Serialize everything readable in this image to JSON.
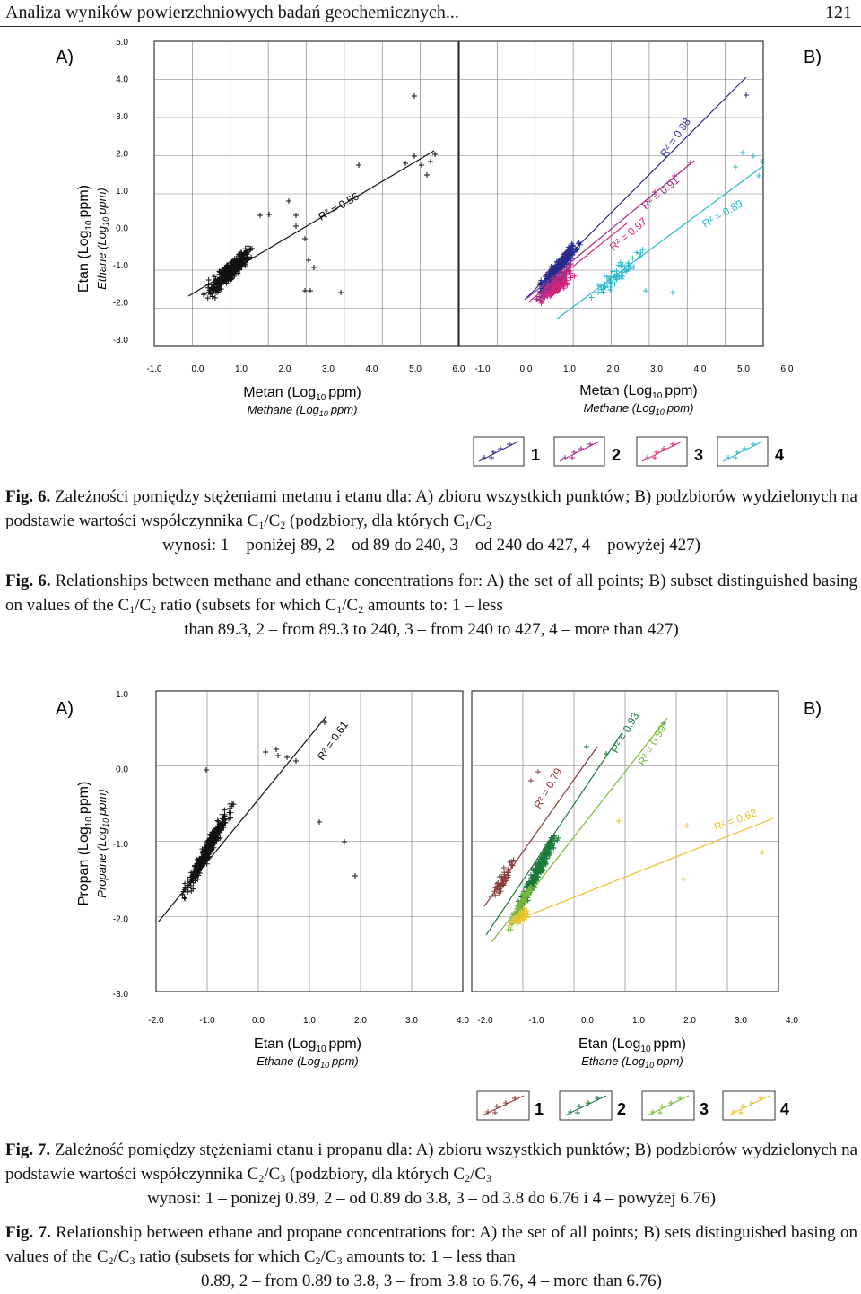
{
  "header": {
    "title": "Analiza wyników powierzchniowych badań geochemicznych...",
    "page": "121"
  },
  "figures": [
    {
      "id": "fig6",
      "label_left": "A)",
      "label_right": "B)",
      "yaxis": {
        "pl": "Etan (Log",
        "en": "Ethane (Log",
        "unit": "ppm)",
        "sub": "10",
        "ticks": [
          "5.0",
          "4.0",
          "3.0",
          "2.0",
          "1.0",
          "0.0",
          "-1.0",
          "-2.0",
          "-3.0"
        ]
      },
      "xaxis": {
        "pl": "Metan (Log",
        "en": "Methane (Log",
        "unit": "ppm)",
        "sub": "10",
        "ticks": [
          "-1.0",
          "0.0",
          "1.0",
          "2.0",
          "3.0",
          "4.0",
          "5.0",
          "6.0"
        ]
      },
      "r2_labels": [
        "R² = 0.56",
        "R² = 0.88",
        "R² = 0.91",
        "R² = 0.97",
        "R² = 0.89"
      ],
      "legend": [
        "1",
        "2",
        "3",
        "4"
      ],
      "colors": [
        "#2b2a8c",
        "#a02a86",
        "#d0257a",
        "#2ab8cc"
      ]
    },
    {
      "id": "fig7",
      "label_left": "A)",
      "label_right": "B)",
      "yaxis": {
        "pl": "Propan (Log",
        "en": "Propane (Log",
        "unit": "ppm)",
        "sub": "10",
        "ticks": [
          "1.0",
          "0.0",
          "-1.0",
          "-2.0",
          "-3.0"
        ]
      },
      "xaxis": {
        "pl": "Etan (Log",
        "en": "Ethane (Log",
        "unit": "ppm)",
        "sub": "10",
        "ticks": [
          "-2.0",
          "-1.0",
          "0.0",
          "1.0",
          "2.0",
          "3.0",
          "4.0"
        ]
      },
      "r2_labels": [
        "R² = 0.61",
        "R² = 0.79",
        "R² = 0.93",
        "R² = 0.99",
        "R² = 0.62"
      ],
      "legend": [
        "1",
        "2",
        "3",
        "4"
      ],
      "colors": [
        "#8b3a3a",
        "#1a7a3a",
        "#7ab83a",
        "#e8c02a"
      ]
    }
  ],
  "captions": {
    "fig6_pl": {
      "lead": "Fig. 6.",
      "a": " Zależności pomiędzy stężeniami metanu i etanu dla: A) zbioru wszystkich punktów; B) podzbiorów wydzielonych na podstawie wartości współczynnika C",
      "b": "/C",
      "c": " (podzbiory, dla których C",
      "d": "/C",
      "e": "",
      "last": "wynosi: 1 – poniżej 89, 2 – od 89 do 240, 3 – od 240 do 427, 4 – powyżej 427)",
      "s1": "1",
      "s2": "2"
    },
    "fig6_en": {
      "lead": "Fig. 6.",
      "a": " Relationships between methane and ethane concentrations for: A) the set of all points; B) subset distinguished basing on values of the C",
      "b": "/C",
      "c": " ratio (subsets for which C",
      "d": "/C",
      "e": " amounts to: 1 – less",
      "last": "than 89.3, 2 – from 89.3 to 240, 3 – from 240 to 427, 4 – more than 427)",
      "s1": "1",
      "s2": "2"
    },
    "fig7_pl": {
      "lead": "Fig. 7.",
      "a": " Zależność pomiędzy stężeniami etanu i propanu dla: A) zbioru wszystkich punktów; B) podzbiorów wydzielonych na podstawie wartości współczynnika C",
      "b": "/C",
      "c": " (podzbiory, dla których C",
      "d": "/C",
      "e": "",
      "last": "wynosi: 1 – poniżej 0.89, 2 – od 0.89 do 3.8, 3 – od 3.8 do 6.76 i 4 – powyżej 6.76)",
      "s1": "2",
      "s2": "3"
    },
    "fig7_en": {
      "lead": "Fig. 7.",
      "a": " Relationship between ethane and propane concentrations for: A) the set of all points; B) sets distinguished basing on values of the C",
      "b": "/C",
      "c": " ratio (subsets for which C",
      "d": "/C",
      "e": " amounts to: 1 – less than",
      "last": "0.89, 2 – from 0.89 to 3.8, 3 – from 3.8 to 6.76, 4 – more than 6.76)",
      "s1": "2",
      "s2": "3"
    }
  }
}
